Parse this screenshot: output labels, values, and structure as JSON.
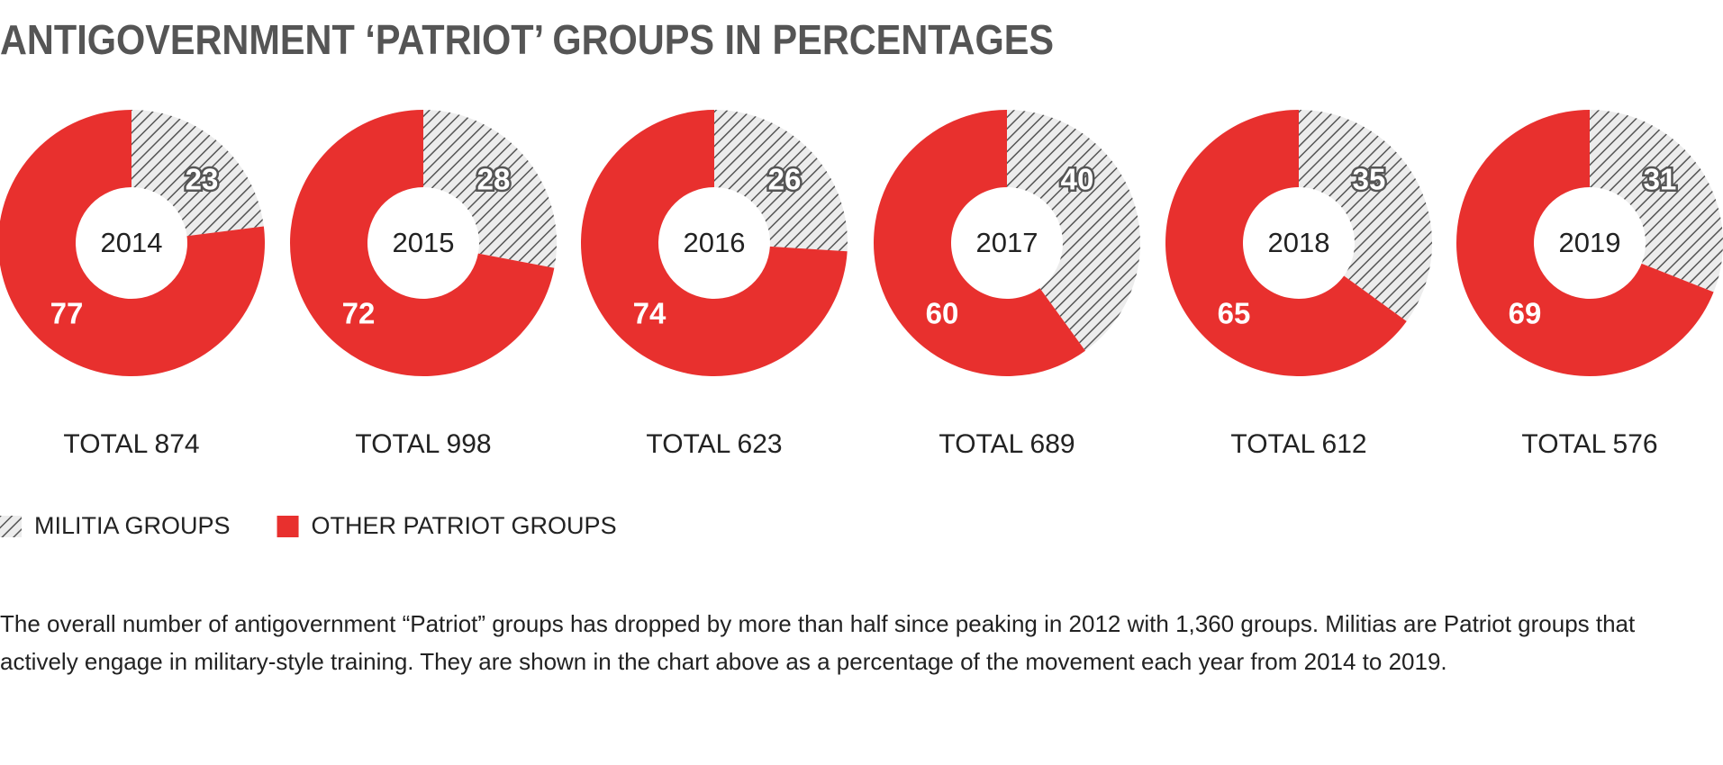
{
  "title": "ANTIGOVERNMENT ‘PATRIOT’ GROUPS IN PERCENTAGES",
  "note": "The overall number of antigovernment “Patriot” groups has dropped by more than half since peaking in 2012 with 1,360 groups. Militias are Patriot groups that actively engage in military-style training. They are shown in the chart above as a percentage of the movement each year from 2014 to 2019.",
  "chart_data": [
    {
      "type": "pie",
      "title": "2014",
      "subtitle": "TOTAL 874",
      "categories": [
        "MILITIA GROUPS",
        "OTHER PATRIOT GROUPS"
      ],
      "values": [
        23,
        77
      ],
      "colors": [
        "#555555",
        "#e8302e"
      ],
      "patterns": [
        "hatch",
        "solid"
      ]
    },
    {
      "type": "pie",
      "title": "2015",
      "subtitle": "TOTAL 998",
      "categories": [
        "MILITIA GROUPS",
        "OTHER PATRIOT GROUPS"
      ],
      "values": [
        28,
        72
      ],
      "colors": [
        "#555555",
        "#e8302e"
      ],
      "patterns": [
        "hatch",
        "solid"
      ]
    },
    {
      "type": "pie",
      "title": "2016",
      "subtitle": "TOTAL 623",
      "categories": [
        "MILITIA GROUPS",
        "OTHER PATRIOT GROUPS"
      ],
      "values": [
        26,
        74
      ],
      "colors": [
        "#555555",
        "#e8302e"
      ],
      "patterns": [
        "hatch",
        "solid"
      ]
    },
    {
      "type": "pie",
      "title": "2017",
      "subtitle": "TOTAL 689",
      "categories": [
        "MILITIA GROUPS",
        "OTHER PATRIOT GROUPS"
      ],
      "values": [
        40,
        60
      ],
      "colors": [
        "#555555",
        "#e8302e"
      ],
      "patterns": [
        "hatch",
        "solid"
      ]
    },
    {
      "type": "pie",
      "title": "2018",
      "subtitle": "TOTAL 612",
      "categories": [
        "MILITIA GROUPS",
        "OTHER PATRIOT GROUPS"
      ],
      "values": [
        35,
        65
      ],
      "colors": [
        "#555555",
        "#e8302e"
      ],
      "patterns": [
        "hatch",
        "solid"
      ]
    },
    {
      "type": "pie",
      "title": "2019",
      "subtitle": "TOTAL 576",
      "categories": [
        "MILITIA GROUPS",
        "OTHER PATRIOT GROUPS"
      ],
      "values": [
        31,
        69
      ],
      "colors": [
        "#555555",
        "#e8302e"
      ],
      "patterns": [
        "hatch",
        "solid"
      ]
    }
  ]
}
